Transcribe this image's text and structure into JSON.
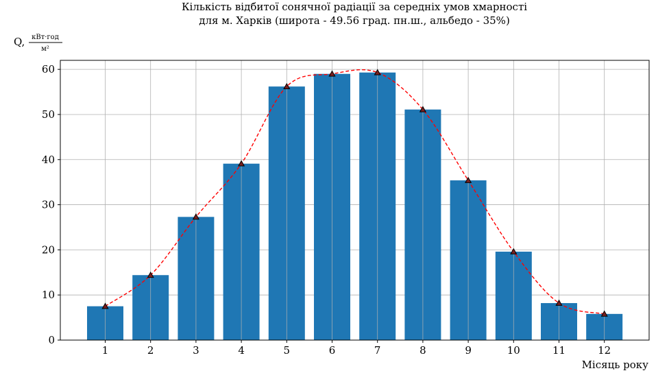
{
  "chart_data": {
    "type": "bar",
    "title_line1": "Кількість відбитої сонячної радіації за середніх умов хмарності",
    "title_line2": "для м. Харків (широта - 49.56 град. пн.ш., альбедо - 35%)",
    "xlabel": "Місяць року",
    "ylabel_prefix": "Q,",
    "ylabel_unit_numerator": "кВт·год",
    "ylabel_unit_denominator": "м²",
    "categories": [
      "1",
      "2",
      "3",
      "4",
      "5",
      "6",
      "7",
      "8",
      "9",
      "10",
      "11",
      "12"
    ],
    "values": [
      7.5,
      14.4,
      27.3,
      39.1,
      56.2,
      59.0,
      59.3,
      51.1,
      35.4,
      19.6,
      8.2,
      5.8
    ],
    "yticks": [
      "0",
      "10",
      "20",
      "30",
      "40",
      "50",
      "60"
    ],
    "ylim": [
      0,
      62
    ],
    "grid": true,
    "overlay_line": {
      "style": "dashed",
      "marker": "triangle"
    },
    "colors": {
      "bar": "#1f77b4",
      "line": "#ff0000",
      "marker_edge": "#000000",
      "grid": "#b0b0b0"
    }
  }
}
